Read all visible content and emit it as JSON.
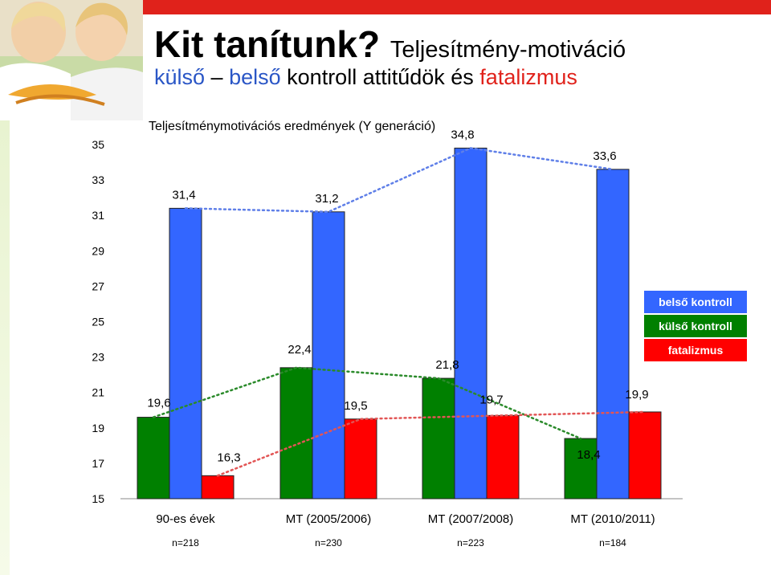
{
  "header": {
    "title_main": "Kit tanítunk?",
    "title_sub": "Teljesítmény-motiváció",
    "line2_part1": "külső",
    "line2_dash": "–",
    "line2_part2": "belső",
    "line2_part3": "kontroll attitűdök és",
    "line2_part4": "fatalizmus"
  },
  "chart_data": {
    "type": "bar",
    "title": "Teljesítménymotivációs eredmények (Y generáció)",
    "categories": [
      "90-es évek",
      "MT (2005/2006)",
      "MT (2007/2008)",
      "MT (2010/2011)"
    ],
    "sample_sizes": [
      "n=218",
      "n=230",
      "n=223",
      "n=184"
    ],
    "ylim": [
      15,
      35
    ],
    "yticks": [
      15,
      17,
      19,
      21,
      23,
      25,
      27,
      29,
      31,
      33,
      35
    ],
    "series": [
      {
        "name": "külső kontroll",
        "color": "#008000",
        "values": [
          19.6,
          22.4,
          21.8,
          18.4
        ],
        "labels": [
          "19,6",
          "22,4",
          "21,8",
          "18,4"
        ]
      },
      {
        "name": "belső kontroll",
        "color": "#3366ff",
        "values": [
          31.4,
          31.2,
          34.8,
          33.6
        ],
        "labels": [
          "31,4",
          "31,2",
          "34,8",
          "33,6"
        ]
      },
      {
        "name": "fatalizmus",
        "color": "#ff0000",
        "values": [
          16.3,
          19.5,
          19.7,
          19.9
        ],
        "labels": [
          "16,3",
          "19,5",
          "19,7",
          "19,9"
        ]
      }
    ],
    "legend": [
      "belső kontroll",
      "külső kontroll",
      "fatalizmus"
    ],
    "legend_position": "right",
    "trend_lines": "dotted"
  }
}
